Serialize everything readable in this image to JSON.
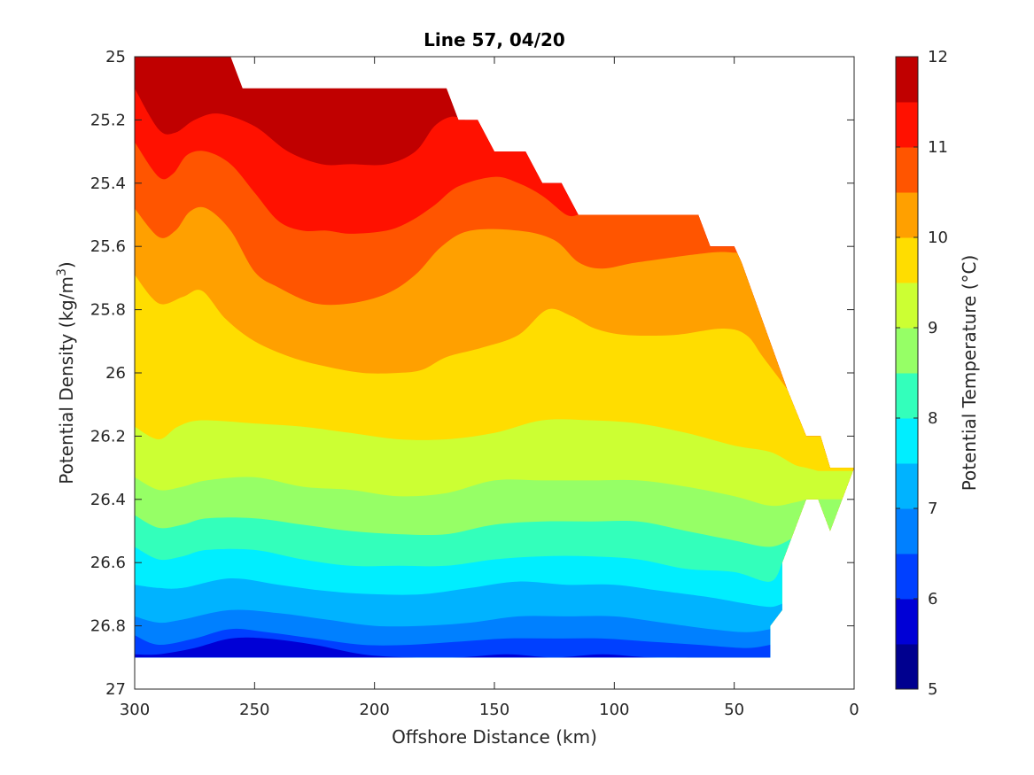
{
  "chart_data": {
    "type": "filled-contour",
    "title": "Line 57, 04/20",
    "xlabel": "Offshore Distance (km)",
    "ylabel_main": "Potential Density (kg/m",
    "ylabel_sup": "3",
    "ylabel_end": ")",
    "colorbar_label": "Potential Temperature (°C)",
    "x_axis": {
      "min": 0,
      "max": 300,
      "reversed": true,
      "ticks": [
        300,
        250,
        200,
        150,
        100,
        50,
        0
      ]
    },
    "y_axis": {
      "min": 25,
      "max": 27,
      "reversed": true,
      "ticks": [
        25,
        25.2,
        25.4,
        25.6,
        25.8,
        26,
        26.2,
        26.4,
        26.6,
        26.8,
        27
      ],
      "tick_labels": [
        "25",
        "25.2",
        "25.4",
        "25.6",
        "25.8",
        "26",
        "26.2",
        "26.4",
        "26.6",
        "26.8",
        "27"
      ]
    },
    "colorbar": {
      "min": 5,
      "max": 12,
      "step": 0.5,
      "ticks": [
        5,
        6,
        7,
        8,
        9,
        10,
        11,
        12
      ],
      "colors": [
        "#00008f",
        "#0000d6",
        "#0040ff",
        "#0080ff",
        "#00b3ff",
        "#00eeff",
        "#33ffbb",
        "#96ff66",
        "#ccff33",
        "#ffdd00",
        "#ffa000",
        "#ff5500",
        "#ff1100",
        "#c00000"
      ]
    },
    "boundary": {
      "top": [
        [
          300,
          25.0
        ],
        [
          260,
          25.0
        ],
        [
          255,
          25.1
        ],
        [
          170,
          25.1
        ],
        [
          165,
          25.2
        ],
        [
          157,
          25.2
        ],
        [
          150,
          25.3
        ],
        [
          137,
          25.3
        ],
        [
          130,
          25.4
        ],
        [
          122,
          25.4
        ],
        [
          115,
          25.5
        ],
        [
          65,
          25.5
        ],
        [
          60,
          25.6
        ],
        [
          50,
          25.6
        ],
        [
          47,
          25.65
        ],
        [
          28,
          26.05
        ],
        [
          20,
          26.2
        ],
        [
          14,
          26.2
        ],
        [
          10,
          26.3
        ],
        [
          0,
          26.3
        ]
      ],
      "bottom_right": [
        [
          0,
          26.3
        ],
        [
          10,
          26.5
        ],
        [
          15,
          26.4
        ],
        [
          20,
          26.4
        ],
        [
          30,
          26.6
        ],
        [
          30,
          26.75
        ],
        [
          35,
          26.8
        ],
        [
          35,
          26.9
        ]
      ],
      "bottom_y": 26.9
    },
    "contour_lines": [
      {
        "level": 11.5,
        "points": [
          [
            300,
            25.05
          ],
          [
            292,
            25.08
          ],
          [
            285,
            25.09
          ],
          [
            280,
            25.07
          ],
          [
            272,
            25.06
          ],
          [
            262,
            25.1
          ]
        ]
      },
      {
        "level": 11,
        "points": [
          [
            300,
            25.1
          ],
          [
            290,
            25.23
          ],
          [
            283,
            25.24
          ],
          [
            275,
            25.2
          ],
          [
            265,
            25.18
          ],
          [
            250,
            25.22
          ],
          [
            236,
            25.3
          ],
          [
            222,
            25.34
          ],
          [
            210,
            25.34
          ],
          [
            195,
            25.34
          ],
          [
            183,
            25.3
          ],
          [
            175,
            25.22
          ],
          [
            168,
            25.19
          ],
          [
            162,
            25.2
          ]
        ]
      },
      {
        "level": 10.5,
        "points": [
          [
            300,
            25.27
          ],
          [
            290,
            25.38
          ],
          [
            284,
            25.37
          ],
          [
            278,
            25.31
          ],
          [
            270,
            25.3
          ],
          [
            260,
            25.34
          ],
          [
            250,
            25.43
          ],
          [
            240,
            25.52
          ],
          [
            230,
            25.55
          ],
          [
            220,
            25.55
          ],
          [
            210,
            25.56
          ],
          [
            195,
            25.55
          ],
          [
            185,
            25.52
          ],
          [
            175,
            25.47
          ],
          [
            165,
            25.41
          ],
          [
            150,
            25.38
          ],
          [
            140,
            25.4
          ],
          [
            130,
            25.44
          ],
          [
            120,
            25.5
          ],
          [
            115,
            25.5
          ]
        ]
      },
      {
        "level": 10,
        "points": [
          [
            300,
            25.48
          ],
          [
            290,
            25.57
          ],
          [
            283,
            25.55
          ],
          [
            277,
            25.49
          ],
          [
            270,
            25.48
          ],
          [
            260,
            25.55
          ],
          [
            250,
            25.68
          ],
          [
            240,
            25.73
          ],
          [
            225,
            25.78
          ],
          [
            210,
            25.78
          ],
          [
            195,
            25.75
          ],
          [
            183,
            25.69
          ],
          [
            172,
            25.6
          ],
          [
            160,
            25.55
          ],
          [
            140,
            25.55
          ],
          [
            125,
            25.58
          ],
          [
            115,
            25.65
          ],
          [
            105,
            25.67
          ],
          [
            90,
            25.65
          ],
          [
            60,
            25.62
          ],
          [
            50,
            25.62
          ]
        ]
      },
      {
        "level": 9.5,
        "points": [
          [
            300,
            25.69
          ],
          [
            290,
            25.78
          ],
          [
            280,
            25.76
          ],
          [
            272,
            25.74
          ],
          [
            262,
            25.83
          ],
          [
            250,
            25.9
          ],
          [
            235,
            25.95
          ],
          [
            220,
            25.98
          ],
          [
            205,
            26.0
          ],
          [
            190,
            26.0
          ],
          [
            180,
            25.99
          ],
          [
            170,
            25.95
          ],
          [
            155,
            25.92
          ],
          [
            140,
            25.88
          ],
          [
            128,
            25.8
          ],
          [
            118,
            25.82
          ],
          [
            108,
            25.86
          ],
          [
            95,
            25.88
          ],
          [
            75,
            25.88
          ],
          [
            55,
            25.86
          ],
          [
            45,
            25.88
          ],
          [
            38,
            25.95
          ],
          [
            28,
            26.05
          ]
        ]
      },
      {
        "level": 9,
        "points": [
          [
            300,
            26.17
          ],
          [
            290,
            26.21
          ],
          [
            282,
            26.17
          ],
          [
            272,
            26.15
          ],
          [
            250,
            26.16
          ],
          [
            230,
            26.17
          ],
          [
            210,
            26.19
          ],
          [
            190,
            26.21
          ],
          [
            170,
            26.21
          ],
          [
            150,
            26.19
          ],
          [
            130,
            26.15
          ],
          [
            110,
            26.15
          ],
          [
            90,
            26.16
          ],
          [
            70,
            26.19
          ],
          [
            50,
            26.23
          ],
          [
            35,
            26.25
          ],
          [
            25,
            26.29
          ],
          [
            20,
            26.3
          ],
          [
            15,
            26.31
          ]
        ]
      },
      {
        "level": 8.5,
        "points": [
          [
            300,
            26.33
          ],
          [
            290,
            26.37
          ],
          [
            280,
            26.36
          ],
          [
            270,
            26.34
          ],
          [
            250,
            26.33
          ],
          [
            230,
            26.36
          ],
          [
            210,
            26.37
          ],
          [
            190,
            26.39
          ],
          [
            170,
            26.38
          ],
          [
            150,
            26.34
          ],
          [
            130,
            26.34
          ],
          [
            110,
            26.34
          ],
          [
            90,
            26.34
          ],
          [
            70,
            26.36
          ],
          [
            50,
            26.39
          ],
          [
            35,
            26.42
          ],
          [
            25,
            26.41
          ],
          [
            20,
            26.4
          ]
        ]
      },
      {
        "level": 8,
        "points": [
          [
            300,
            26.45
          ],
          [
            290,
            26.49
          ],
          [
            280,
            26.48
          ],
          [
            270,
            26.46
          ],
          [
            250,
            26.46
          ],
          [
            230,
            26.48
          ],
          [
            210,
            26.5
          ],
          [
            190,
            26.51
          ],
          [
            170,
            26.51
          ],
          [
            150,
            26.48
          ],
          [
            130,
            26.47
          ],
          [
            110,
            26.47
          ],
          [
            90,
            26.47
          ],
          [
            70,
            26.5
          ],
          [
            50,
            26.53
          ],
          [
            35,
            26.55
          ],
          [
            25,
            26.52
          ]
        ]
      },
      {
        "level": 7.5,
        "points": [
          [
            300,
            26.55
          ],
          [
            290,
            26.59
          ],
          [
            280,
            26.58
          ],
          [
            270,
            26.56
          ],
          [
            250,
            26.56
          ],
          [
            230,
            26.59
          ],
          [
            210,
            26.61
          ],
          [
            190,
            26.61
          ],
          [
            170,
            26.61
          ],
          [
            150,
            26.59
          ],
          [
            130,
            26.58
          ],
          [
            110,
            26.58
          ],
          [
            90,
            26.59
          ],
          [
            70,
            26.62
          ],
          [
            50,
            26.63
          ],
          [
            35,
            26.66
          ],
          [
            30,
            26.6
          ]
        ]
      },
      {
        "level": 7,
        "points": [
          [
            300,
            26.67
          ],
          [
            290,
            26.68
          ],
          [
            280,
            26.68
          ],
          [
            260,
            26.65
          ],
          [
            240,
            26.67
          ],
          [
            220,
            26.69
          ],
          [
            200,
            26.7
          ],
          [
            180,
            26.7
          ],
          [
            160,
            26.68
          ],
          [
            140,
            26.66
          ],
          [
            120,
            26.67
          ],
          [
            100,
            26.67
          ],
          [
            80,
            26.69
          ],
          [
            60,
            26.71
          ],
          [
            45,
            26.73
          ],
          [
            35,
            26.74
          ],
          [
            30,
            26.73
          ]
        ]
      },
      {
        "level": 6.5,
        "points": [
          [
            300,
            26.77
          ],
          [
            290,
            26.79
          ],
          [
            280,
            26.78
          ],
          [
            260,
            26.75
          ],
          [
            240,
            26.76
          ],
          [
            220,
            26.78
          ],
          [
            200,
            26.8
          ],
          [
            180,
            26.8
          ],
          [
            160,
            26.79
          ],
          [
            140,
            26.77
          ],
          [
            120,
            26.77
          ],
          [
            100,
            26.77
          ],
          [
            80,
            26.79
          ],
          [
            60,
            26.81
          ],
          [
            45,
            26.82
          ],
          [
            35,
            26.81
          ],
          [
            32,
            26.8
          ]
        ]
      },
      {
        "level": 6,
        "points": [
          [
            300,
            26.83
          ],
          [
            290,
            26.86
          ],
          [
            275,
            26.84
          ],
          [
            260,
            26.81
          ],
          [
            245,
            26.82
          ],
          [
            225,
            26.84
          ],
          [
            205,
            26.86
          ],
          [
            185,
            26.86
          ],
          [
            165,
            26.85
          ],
          [
            145,
            26.84
          ],
          [
            125,
            26.84
          ],
          [
            105,
            26.84
          ],
          [
            85,
            26.85
          ],
          [
            65,
            26.86
          ],
          [
            45,
            26.87
          ],
          [
            35,
            26.86
          ]
        ]
      },
      {
        "level": 5.5,
        "points": [
          [
            300,
            26.89
          ],
          [
            290,
            26.89
          ],
          [
            275,
            26.87
          ],
          [
            260,
            26.84
          ],
          [
            245,
            26.84
          ],
          [
            225,
            26.86
          ],
          [
            205,
            26.89
          ],
          [
            185,
            26.9
          ],
          [
            165,
            26.9
          ],
          [
            145,
            26.89
          ],
          [
            125,
            26.9
          ],
          [
            105,
            26.89
          ],
          [
            85,
            26.9
          ],
          [
            65,
            26.9
          ],
          [
            35,
            26.9
          ]
        ]
      }
    ]
  }
}
